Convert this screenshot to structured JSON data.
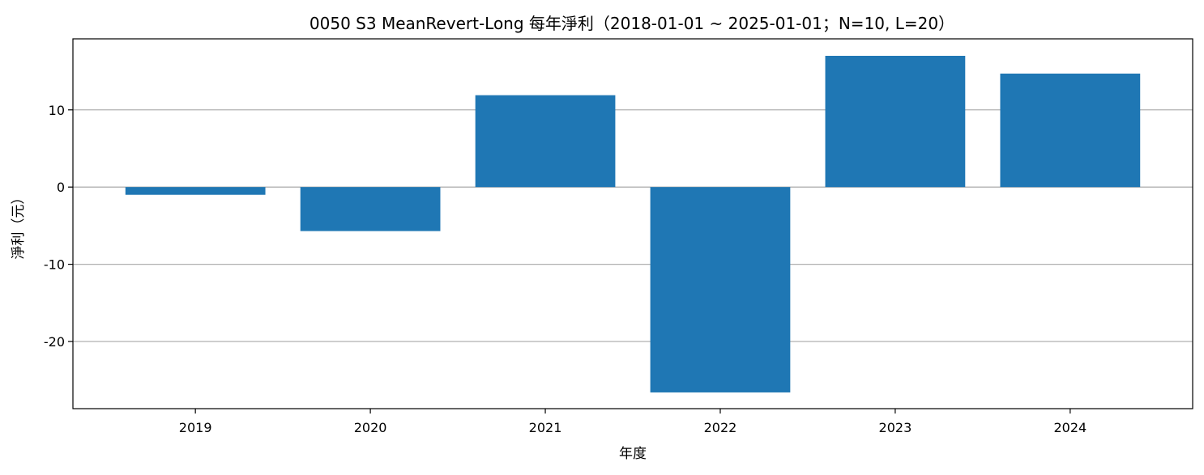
{
  "chart_data": {
    "type": "bar",
    "title": "0050 S3 MeanRevert-Long 每年淨利（2018-01-01 ~ 2025-01-01；N=10, L=20）",
    "xlabel": "年度",
    "ylabel": "淨利（元）",
    "categories": [
      "2019",
      "2020",
      "2021",
      "2022",
      "2023",
      "2024"
    ],
    "values": [
      -1.0,
      -5.7,
      11.9,
      -26.6,
      17.0,
      14.7
    ],
    "ylim": [
      -28.7,
      19.2
    ],
    "yticks": [
      -20,
      -10,
      0,
      10
    ],
    "ytick_labels": [
      "-20",
      "-10",
      "0",
      "10"
    ],
    "grid": "horizontal",
    "bar_color": "#1f77b4"
  }
}
